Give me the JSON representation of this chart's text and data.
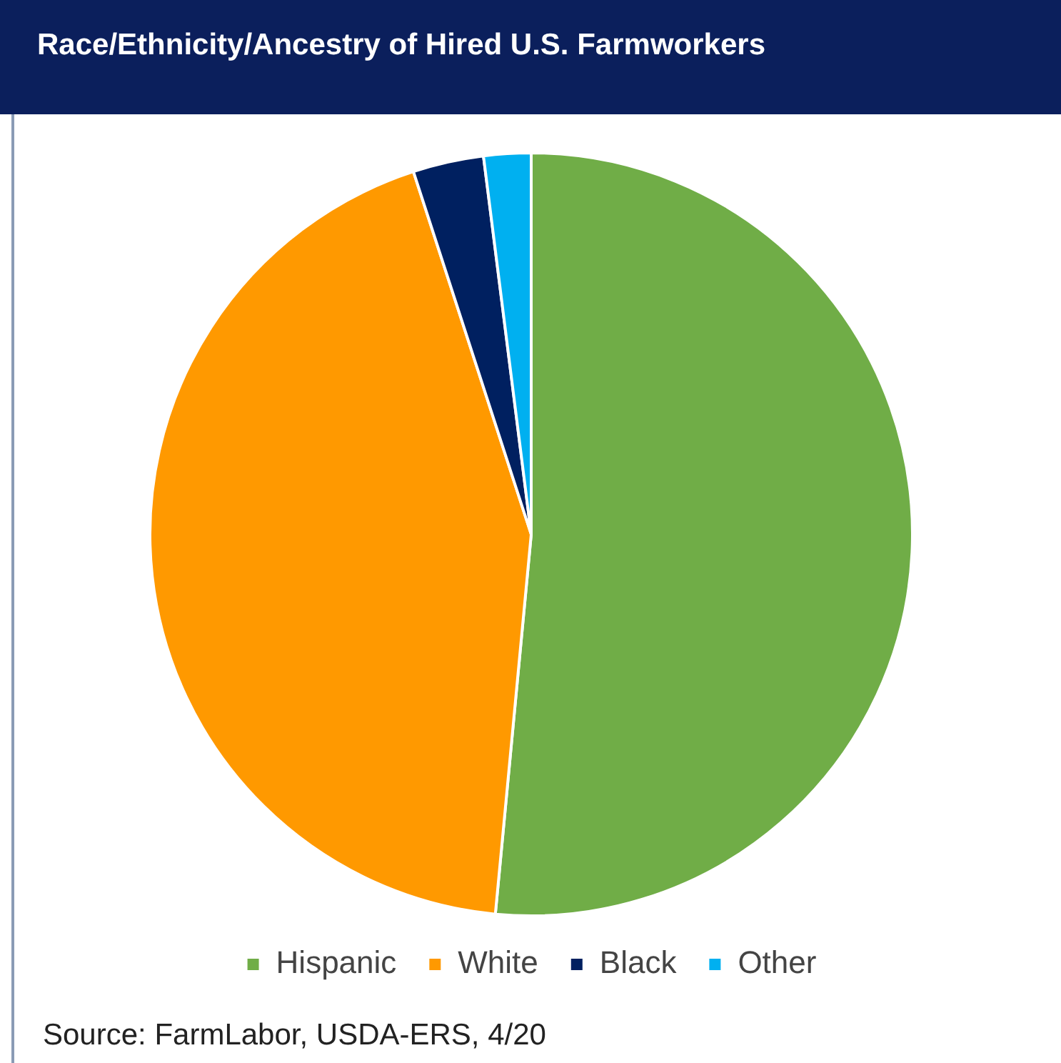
{
  "chart_data": {
    "type": "pie",
    "title": "Race/Ethnicity/Ancestry of Hired U.S. Farmworkers",
    "categories": [
      "Hispanic",
      "White",
      "Black",
      "Other"
    ],
    "values": [
      51.5,
      43.5,
      3,
      2
    ],
    "colors": [
      "#70ad47",
      "#ff9900",
      "#002060",
      "#00b0f0"
    ],
    "legend": "bottom",
    "annotations": [
      "Source: FarmLabor, USDA-ERS, 4/20"
    ]
  }
}
